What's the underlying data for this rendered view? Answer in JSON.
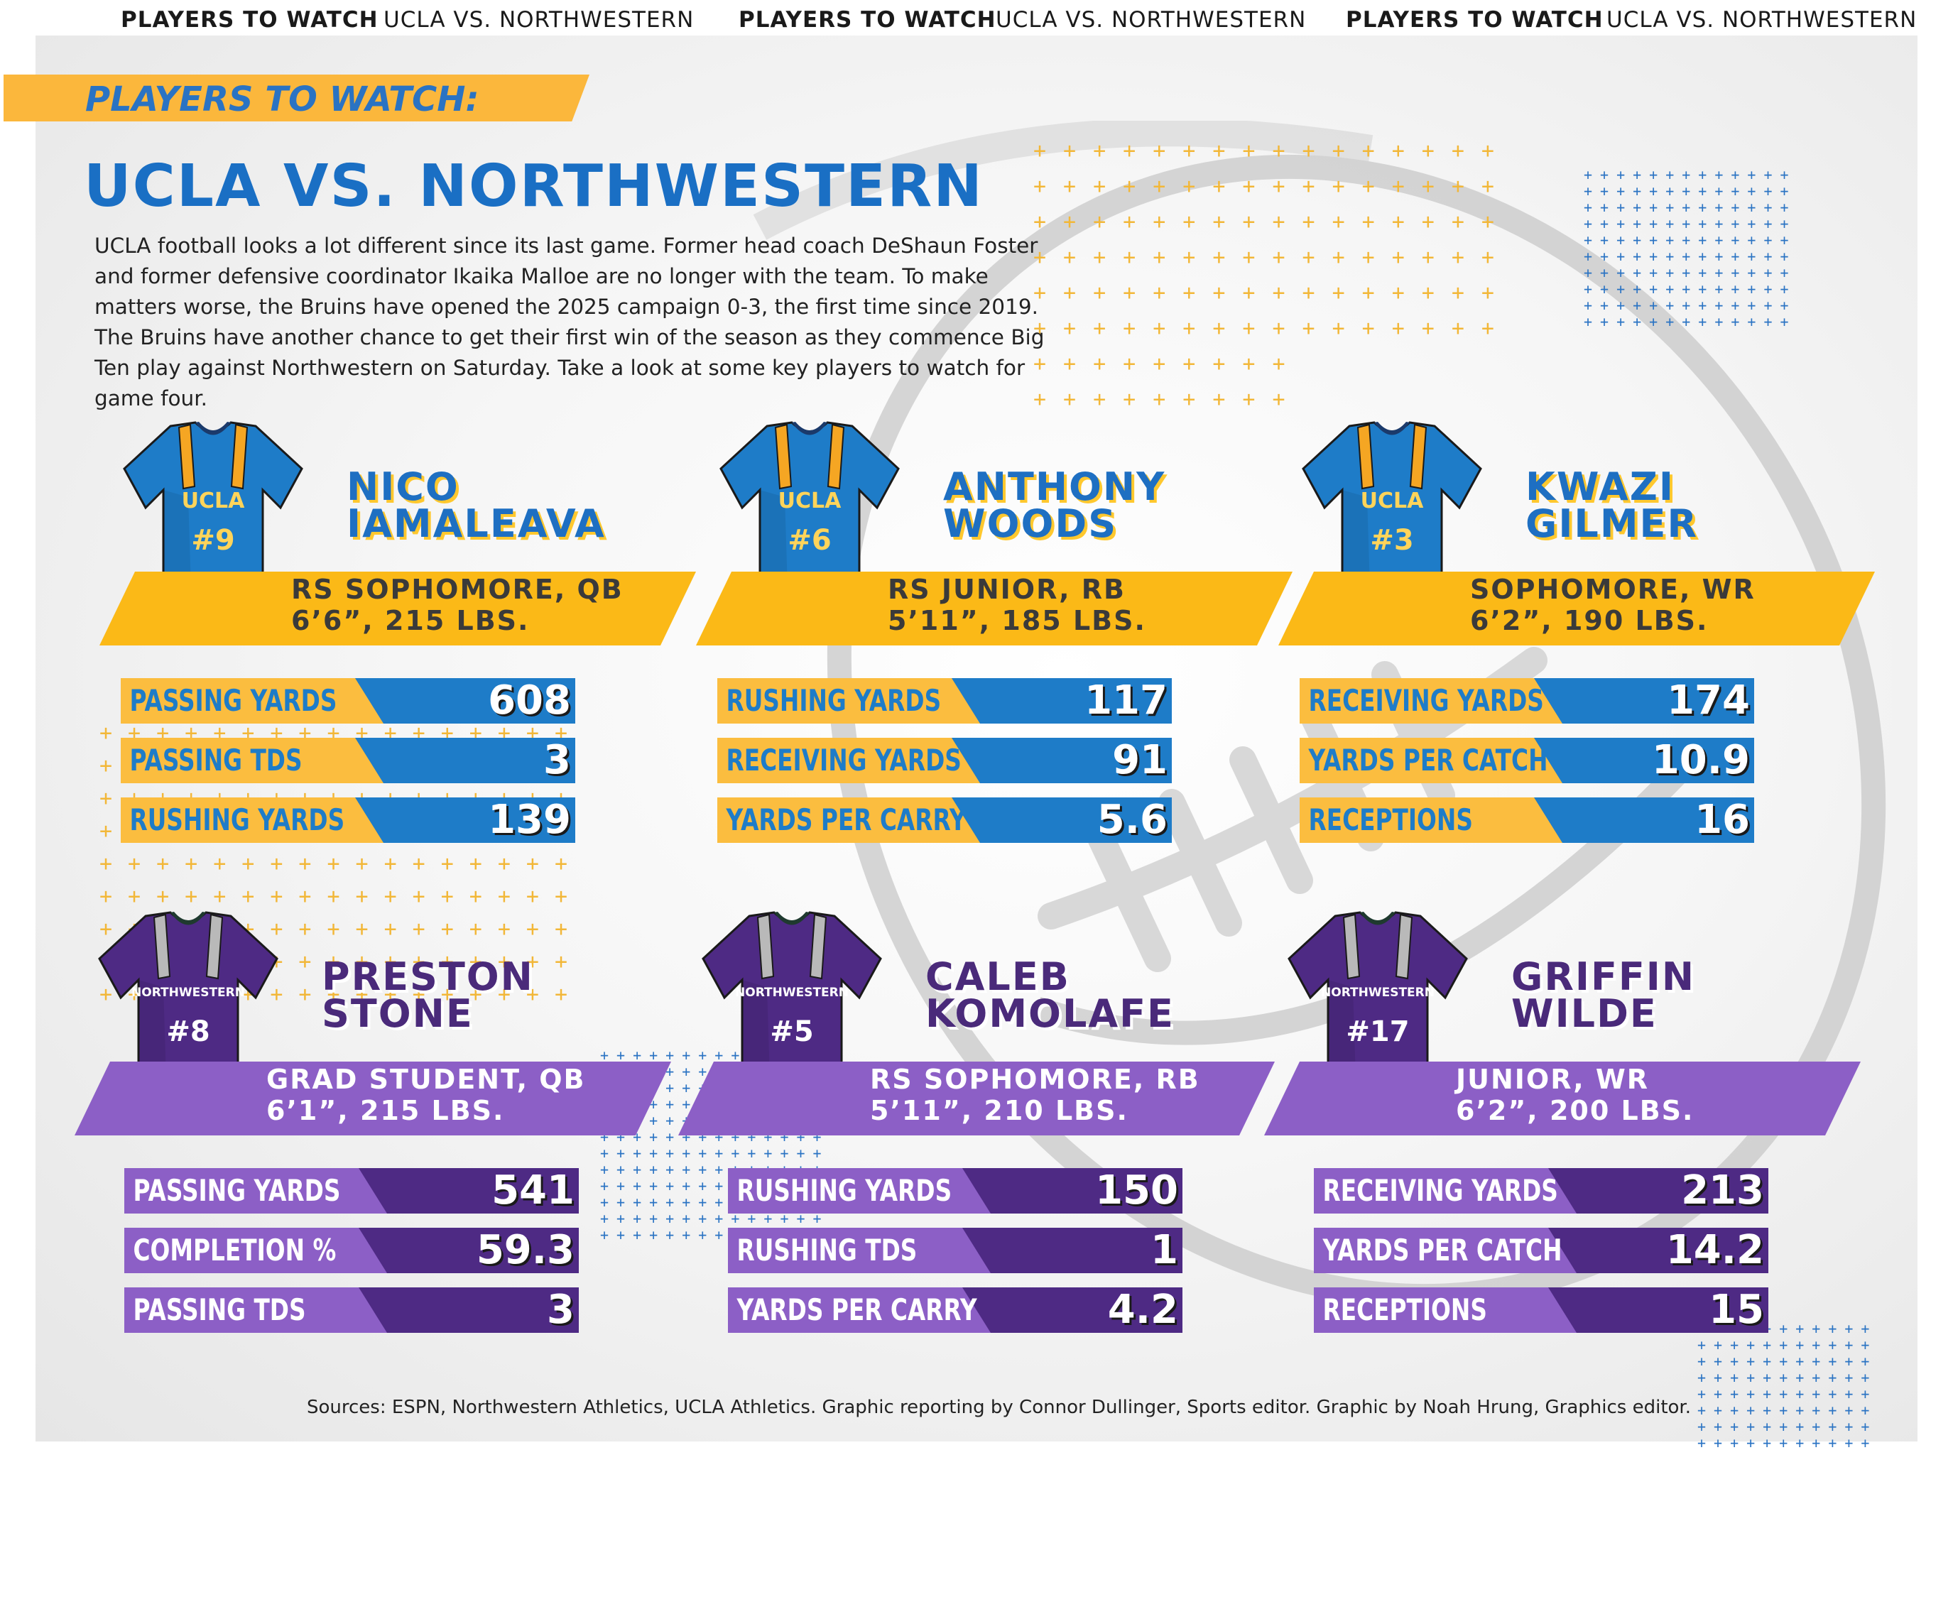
{
  "ticker": [
    {
      "text": "PLAYERS TO WATCH",
      "bold": true
    },
    {
      "text": "UCLA VS. NORTHWESTERN",
      "bold": false
    },
    {
      "text": "PLAYERS TO WATCH",
      "bold": true
    },
    {
      "text": "UCLA VS. NORTHWESTERN",
      "bold": false
    },
    {
      "text": "PLAYERS TO WATCH",
      "bold": true
    },
    {
      "text": "UCLA VS. NORTHWESTERN",
      "bold": false
    }
  ],
  "banner": "PLAYERS TO WATCH:",
  "title": "UCLA VS. NORTHWESTERN",
  "intro": "UCLA football looks a lot different since its last game. Former head coach DeShaun Foster and former defensive coordinator Ikaika Malloe are no longer with the team. To make matters worse, the Bruins have opened the 2025 campaign 0-3, the first time since 2019. The Bruins have another chance to get their first win of the season as they commence Big Ten play against Northwestern on Saturday. Take a look at some key players to watch for game four.",
  "colors": {
    "ucla_blue": "#1e7cc8",
    "ucla_gold": "#fbbd3f",
    "nw_purple": "#4e2a84",
    "nw_light": "#8c5fc6"
  },
  "players": [
    {
      "team": "ucla",
      "jersey_team": "UCLA",
      "number": "#9",
      "first": "NICO",
      "last": "IAMALEAVA",
      "line1": "RS SOPHOMORE, QB",
      "line2": "6’6”, 215 LBS.",
      "stats": [
        {
          "label": "PASSING YARDS",
          "value": "608"
        },
        {
          "label": "PASSING TDS",
          "value": "3"
        },
        {
          "label": "RUSHING YARDS",
          "value": "139"
        }
      ]
    },
    {
      "team": "ucla",
      "jersey_team": "UCLA",
      "number": "#6",
      "first": "ANTHONY",
      "last": "WOODS",
      "line1": "RS JUNIOR, RB",
      "line2": "5’11”, 185 LBS.",
      "stats": [
        {
          "label": "RUSHING YARDS",
          "value": "117"
        },
        {
          "label": "RECEIVING YARDS",
          "value": "91"
        },
        {
          "label": "YARDS PER CARRY",
          "value": "5.6"
        }
      ]
    },
    {
      "team": "ucla",
      "jersey_team": "UCLA",
      "number": "#3",
      "first": "KWAZI",
      "last": "GILMER",
      "line1": "SOPHOMORE, WR",
      "line2": "6’2”, 190 LBS.",
      "stats": [
        {
          "label": "RECEIVING YARDS",
          "value": "174"
        },
        {
          "label": "YARDS PER CATCH",
          "value": "10.9"
        },
        {
          "label": "RECEPTIONS",
          "value": "16"
        }
      ]
    },
    {
      "team": "nw",
      "jersey_team": "NORTHWESTERN",
      "number": "#8",
      "first": "PRESTON",
      "last": "STONE",
      "line1": "GRAD STUDENT, QB",
      "line2": "6’1”, 215 LBS.",
      "stats": [
        {
          "label": "PASSING YARDS",
          "value": "541"
        },
        {
          "label": "COMPLETION %",
          "value": "59.3"
        },
        {
          "label": "PASSING TDS",
          "value": "3"
        }
      ]
    },
    {
      "team": "nw",
      "jersey_team": "NORTHWESTERN",
      "number": "#5",
      "first": "CALEB",
      "last": "KOMOLAFE",
      "line1": "RS SOPHOMORE, RB",
      "line2": "5’11”, 210 LBS.",
      "stats": [
        {
          "label": "RUSHING YARDS",
          "value": "150"
        },
        {
          "label": "RUSHING TDS",
          "value": "1"
        },
        {
          "label": "YARDS PER CARRY",
          "value": "4.2"
        }
      ]
    },
    {
      "team": "nw",
      "jersey_team": "NORTHWESTERN",
      "number": "#17",
      "first": "GRIFFIN",
      "last": "WILDE",
      "line1": "JUNIOR, WR",
      "line2": "6’2”, 200 LBS.",
      "stats": [
        {
          "label": "RECEIVING YARDS",
          "value": "213"
        },
        {
          "label": "YARDS PER CATCH",
          "value": "14.2"
        },
        {
          "label": "RECEPTIONS",
          "value": "15"
        }
      ]
    }
  ],
  "sources": "Sources: ESPN, Northwestern Athletics, UCLA Athletics. Graphic reporting by Connor Dullinger, Sports editor. Graphic by Noah Hrung, Graphics editor."
}
